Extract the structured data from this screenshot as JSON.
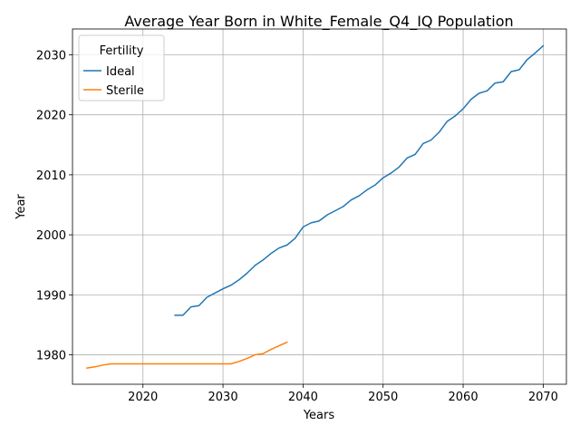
{
  "chart_data": {
    "type": "line",
    "title": "Average Year Born in White_Female_Q4_IQ Population",
    "xlabel": "Years",
    "ylabel": "Year",
    "xlim": [
      2011.2,
      2072.9
    ],
    "ylim": [
      1975.1,
      2034.3
    ],
    "xticks": [
      2020,
      2030,
      2040,
      2050,
      2060,
      2070
    ],
    "yticks": [
      1980,
      1990,
      2000,
      2010,
      2020,
      2030
    ],
    "grid": true,
    "legend": {
      "title": "Fertility",
      "placement": "top-left"
    },
    "series": [
      {
        "name": "Ideal",
        "color": "#1f77b4",
        "x": [
          2024,
          2025,
          2026,
          2027,
          2028,
          2029,
          2030,
          2031,
          2032,
          2033,
          2034,
          2035,
          2036,
          2037,
          2038,
          2039,
          2040,
          2041,
          2042,
          2043,
          2044,
          2045,
          2046,
          2047,
          2048,
          2049,
          2050,
          2051,
          2052,
          2053,
          2054,
          2055,
          2056,
          2057,
          2058,
          2059,
          2060,
          2061,
          2062,
          2063,
          2064,
          2065,
          2066,
          2067,
          2068,
          2069,
          2070
        ],
        "values": [
          1986.6,
          1986.6,
          1988.0,
          1988.2,
          1989.6,
          1990.3,
          1991.0,
          1991.6,
          1992.5,
          1993.6,
          1994.9,
          1995.8,
          1996.9,
          1997.8,
          1998.3,
          1999.4,
          2001.3,
          2002.0,
          2002.3,
          2003.3,
          2004.0,
          2004.7,
          2005.8,
          2006.5,
          2007.5,
          2008.3,
          2009.5,
          2010.3,
          2011.3,
          2012.8,
          2013.4,
          2015.2,
          2015.8,
          2017.1,
          2018.9,
          2019.8,
          2021.0,
          2022.6,
          2023.6,
          2024.0,
          2025.3,
          2025.5,
          2027.2,
          2027.5,
          2029.2,
          2030.3,
          2031.5
        ]
      },
      {
        "name": "Sterile",
        "color": "#ff7f0e",
        "x": [
          2013,
          2014,
          2015,
          2016,
          2017,
          2018,
          2019,
          2020,
          2021,
          2022,
          2023,
          2024,
          2025,
          2026,
          2027,
          2028,
          2029,
          2030,
          2031,
          2032,
          2033,
          2034,
          2035,
          2036,
          2037,
          2038
        ],
        "values": [
          1977.8,
          1978.0,
          1978.3,
          1978.5,
          1978.5,
          1978.5,
          1978.5,
          1978.5,
          1978.5,
          1978.5,
          1978.5,
          1978.5,
          1978.5,
          1978.5,
          1978.5,
          1978.5,
          1978.5,
          1978.5,
          1978.5,
          1978.9,
          1979.4,
          1980.0,
          1980.2,
          1980.9,
          1981.5,
          1982.1
        ]
      }
    ]
  }
}
